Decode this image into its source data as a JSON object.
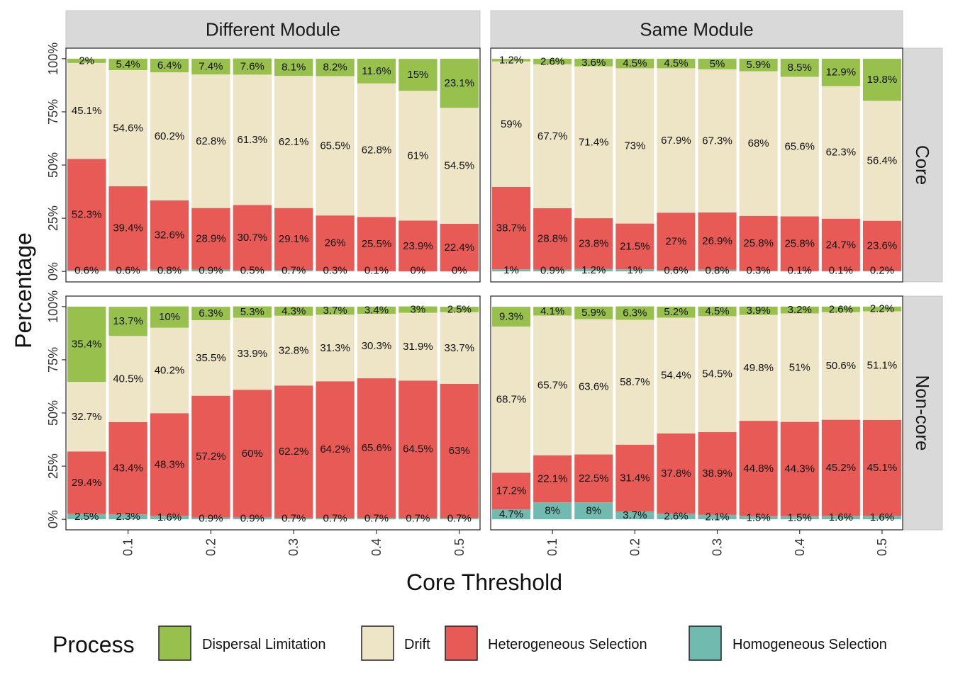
{
  "chart_data": {
    "type": "bar",
    "stacked": true,
    "facet_columns": [
      "Different Module",
      "Same Module"
    ],
    "facet_rows": [
      "Core",
      "Non-core"
    ],
    "xlabel": "Core Threshold",
    "ylabel": "Percentage",
    "x_ticks": [
      "0.1",
      "0.2",
      "0.3",
      "0.4",
      "0.5"
    ],
    "x_tick_values": [
      0.1,
      0.2,
      0.3,
      0.4,
      0.5
    ],
    "x": [
      0.05,
      0.1,
      0.15,
      0.2,
      0.25,
      0.3,
      0.35,
      0.4,
      0.45,
      0.5
    ],
    "y_ticks": [
      "0%",
      "25%",
      "50%",
      "75%",
      "100%"
    ],
    "ylim": [
      0,
      100
    ],
    "legend_title": "Process",
    "legend_position": "bottom",
    "series_names": [
      "Dispersal Limitation",
      "Drift",
      "Heterogeneous Selection",
      "Homogeneous Selection"
    ],
    "colors": {
      "Dispersal Limitation": "#98C04C",
      "Drift": "#EEE4C6",
      "Heterogeneous Selection": "#E85A55",
      "Homogeneous Selection": "#71BAB0"
    },
    "panels": [
      {
        "column": "Different Module",
        "row": "Core",
        "values": {
          "Homogeneous Selection": [
            0.6,
            0.6,
            0.8,
            0.9,
            0.5,
            0.7,
            0.3,
            0.1,
            0,
            0
          ],
          "Heterogeneous Selection": [
            52.3,
            39.4,
            32.6,
            28.9,
            30.7,
            29.1,
            26,
            25.5,
            23.9,
            22.4
          ],
          "Drift": [
            45.1,
            54.6,
            60.2,
            62.8,
            61.3,
            62.1,
            65.5,
            62.8,
            61,
            54.5
          ],
          "Dispersal Limitation": [
            2,
            5.4,
            6.4,
            7.4,
            7.6,
            8.1,
            8.2,
            11.6,
            15,
            23.1
          ]
        },
        "labels": {
          "Homogeneous Selection": [
            "0.6%",
            "0.6%",
            "0.8%",
            "0.9%",
            "0.5%",
            "0.7%",
            "0.3%",
            "0.1%",
            "0%",
            "0%"
          ],
          "Heterogeneous Selection": [
            "52.3%",
            "39.4%",
            "32.6%",
            "28.9%",
            "30.7%",
            "29.1%",
            "26%",
            "25.5%",
            "23.9%",
            "22.4%"
          ],
          "Drift": [
            "45.1%",
            "54.6%",
            "60.2%",
            "62.8%",
            "61.3%",
            "62.1%",
            "65.5%",
            "62.8%",
            "61%",
            "54.5%"
          ],
          "Dispersal Limitation": [
            "2%",
            "5.4%",
            "6.4%",
            "7.4%",
            "7.6%",
            "8.1%",
            "8.2%",
            "11.6%",
            "15%",
            "23.1%"
          ]
        }
      },
      {
        "column": "Same Module",
        "row": "Core",
        "values": {
          "Homogeneous Selection": [
            1,
            0.9,
            1.2,
            1,
            0.6,
            0.8,
            0.3,
            0.1,
            0.1,
            0.2
          ],
          "Heterogeneous Selection": [
            38.7,
            28.8,
            23.8,
            21.5,
            27,
            26.9,
            25.8,
            25.8,
            24.7,
            23.6
          ],
          "Drift": [
            59,
            67.7,
            71.4,
            73,
            67.9,
            67.3,
            68,
            65.6,
            62.3,
            56.4
          ],
          "Dispersal Limitation": [
            1.2,
            2.6,
            3.6,
            4.5,
            4.5,
            5,
            5.9,
            8.5,
            12.9,
            19.8
          ]
        },
        "labels": {
          "Homogeneous Selection": [
            "1%",
            "0.9%",
            "1.2%",
            "1%",
            "0.6%",
            "0.8%",
            "0.3%",
            "0.1%",
            "0.1%",
            "0.2%"
          ],
          "Heterogeneous Selection": [
            "38.7%",
            "28.8%",
            "23.8%",
            "21.5%",
            "27%",
            "26.9%",
            "25.8%",
            "25.8%",
            "24.7%",
            "23.6%"
          ],
          "Drift": [
            "59%",
            "67.7%",
            "71.4%",
            "73%",
            "67.9%",
            "67.3%",
            "68%",
            "65.6%",
            "62.3%",
            "56.4%"
          ],
          "Dispersal Limitation": [
            "1.2%",
            "2.6%",
            "3.6%",
            "4.5%",
            "4.5%",
            "5%",
            "5.9%",
            "8.5%",
            "12.9%",
            "19.8%"
          ]
        }
      },
      {
        "column": "Different Module",
        "row": "Non-core",
        "values": {
          "Homogeneous Selection": [
            2.5,
            2.3,
            1.6,
            0.9,
            0.9,
            0.7,
            0.7,
            0.7,
            0.7,
            0.7
          ],
          "Heterogeneous Selection": [
            29.4,
            43.4,
            48.3,
            57.2,
            60,
            62.2,
            64.2,
            65.6,
            64.5,
            63
          ],
          "Drift": [
            32.7,
            40.5,
            40.2,
            35.5,
            33.9,
            32.8,
            31.3,
            30.3,
            31.9,
            33.7
          ],
          "Dispersal Limitation": [
            35.4,
            13.7,
            10,
            6.3,
            5.3,
            4.3,
            3.7,
            3.4,
            3,
            2.5
          ]
        },
        "labels": {
          "Homogeneous Selection": [
            "2.5%",
            "2.3%",
            "1.6%",
            "0.9%",
            "0.9%",
            "0.7%",
            "0.7%",
            "0.7%",
            "0.7%",
            "0.7%"
          ],
          "Heterogeneous Selection": [
            "29.4%",
            "43.4%",
            "48.3%",
            "57.2%",
            "60%",
            "62.2%",
            "64.2%",
            "65.6%",
            "64.5%",
            "63%"
          ],
          "Drift": [
            "32.7%",
            "40.5%",
            "40.2%",
            "35.5%",
            "33.9%",
            "32.8%",
            "31.3%",
            "30.3%",
            "31.9%",
            "33.7%"
          ],
          "Dispersal Limitation": [
            "35.4%",
            "13.7%",
            "10%",
            "6.3%",
            "5.3%",
            "4.3%",
            "3.7%",
            "3.4%",
            "3%",
            "2.5%"
          ]
        }
      },
      {
        "column": "Same Module",
        "row": "Non-core",
        "values": {
          "Homogeneous Selection": [
            4.7,
            8,
            8,
            3.7,
            2.6,
            2.1,
            1.5,
            1.5,
            1.6,
            1.6
          ],
          "Heterogeneous Selection": [
            17.2,
            22.1,
            22.5,
            31.4,
            37.8,
            38.9,
            44.8,
            44.3,
            45.2,
            45.1
          ],
          "Drift": [
            68.7,
            65.7,
            63.6,
            58.7,
            54.4,
            54.5,
            49.8,
            51,
            50.6,
            51.1
          ],
          "Dispersal Limitation": [
            9.3,
            4.1,
            5.9,
            6.3,
            5.2,
            4.5,
            3.9,
            3.2,
            2.6,
            2.2
          ]
        },
        "labels": {
          "Homogeneous Selection": [
            "4.7%",
            "8%",
            "8%",
            "3.7%",
            "2.6%",
            "2.1%",
            "1.5%",
            "1.5%",
            "1.6%",
            "1.6%"
          ],
          "Heterogeneous Selection": [
            "17.2%",
            "22.1%",
            "22.5%",
            "31.4%",
            "37.8%",
            "38.9%",
            "44.8%",
            "44.3%",
            "45.2%",
            "45.1%"
          ],
          "Drift": [
            "68.7%",
            "65.7%",
            "63.6%",
            "58.7%",
            "54.4%",
            "54.5%",
            "49.8%",
            "51%",
            "50.6%",
            "51.1%"
          ],
          "Dispersal Limitation": [
            "9.3%",
            "4.1%",
            "5.9%",
            "6.3%",
            "5.2%",
            "4.5%",
            "3.9%",
            "3.2%",
            "2.6%",
            "2.2%"
          ]
        }
      }
    ]
  }
}
